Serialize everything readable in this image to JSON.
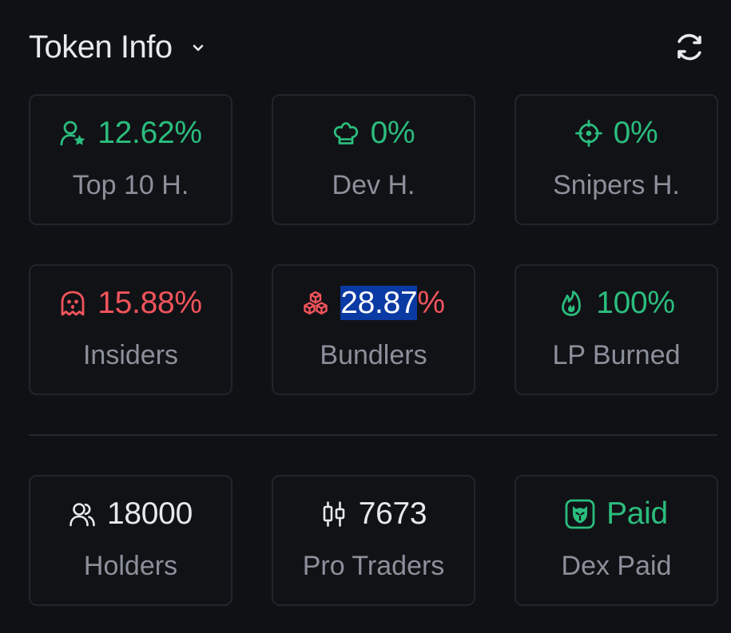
{
  "header": {
    "title": "Token Info",
    "expand_icon": "chevron-down-icon",
    "refresh_icon": "refresh-icon"
  },
  "colors": {
    "background": "#101114",
    "card_border": "#22252c",
    "positive": "#2bbd7e",
    "negative": "#f2545b",
    "neutral_value": "#e7e8ec",
    "label": "#8b909b",
    "selection": "#0a3aa3"
  },
  "cards": {
    "top10": {
      "icon": "user-star-icon",
      "value": "12.62%",
      "label": "Top 10 H."
    },
    "dev": {
      "icon": "chef-hat-icon",
      "value": "0%",
      "label": "Dev H."
    },
    "snipers": {
      "icon": "crosshair-icon",
      "value": "0%",
      "label": "Snipers H."
    },
    "insiders": {
      "icon": "ghost-icon",
      "value": "15.88%",
      "label": "Insiders"
    },
    "bundlers": {
      "icon": "boxes-icon",
      "value_selected": "28.87",
      "value_rest": "%",
      "label": "Bundlers"
    },
    "lp_burned": {
      "icon": "flame-icon",
      "value": "100%",
      "label": "LP Burned"
    },
    "holders": {
      "icon": "users-icon",
      "value": "18000",
      "label": "Holders"
    },
    "pro_traders": {
      "icon": "candlestick-icon",
      "value": "7673",
      "label": "Pro Traders"
    },
    "dex_paid": {
      "icon": "dex-badge-icon",
      "value": "Paid",
      "label": "Dex Paid"
    }
  }
}
